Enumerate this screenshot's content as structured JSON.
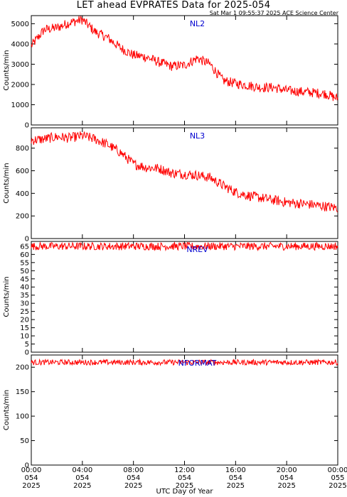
{
  "header": {
    "title": "LET ahead EVPRATES Data for 2025-054",
    "timestamp": "Sat Mar  1 09:55:37 2025 ACE Science Center"
  },
  "colors": {
    "series": "#ff0000",
    "panel_label": "#0000d0",
    "axes": "#000000"
  },
  "chart_data": [
    {
      "type": "line",
      "series": [
        {
          "name": "NL2",
          "x": [
            0,
            1,
            2,
            3,
            4,
            5,
            6,
            7,
            8,
            9,
            10,
            11,
            12,
            13,
            14,
            15,
            16,
            17,
            18,
            19,
            20,
            21,
            22,
            23,
            24
          ],
          "values": [
            3900,
            4700,
            4800,
            5050,
            5200,
            4600,
            4300,
            3800,
            3450,
            3350,
            3100,
            2900,
            2950,
            3300,
            3000,
            2200,
            2050,
            1950,
            1850,
            1850,
            1700,
            1650,
            1600,
            1550,
            1300
          ]
        }
      ],
      "ylabel": "Counts/min",
      "ylim": [
        0,
        5400
      ],
      "yticks": [
        0,
        1000,
        2000,
        3000,
        4000,
        5000
      ]
    },
    {
      "type": "line",
      "series": [
        {
          "name": "NL3",
          "x": [
            0,
            1,
            2,
            3,
            4,
            5,
            6,
            7,
            8,
            9,
            10,
            11,
            12,
            13,
            14,
            15,
            16,
            17,
            18,
            19,
            20,
            21,
            22,
            23,
            24
          ],
          "values": [
            870,
            880,
            900,
            890,
            910,
            880,
            830,
            760,
            660,
            630,
            620,
            580,
            570,
            560,
            540,
            470,
            410,
            380,
            360,
            340,
            320,
            310,
            300,
            285,
            270
          ]
        }
      ],
      "ylabel": "Counts/min",
      "ylim": [
        0,
        980
      ],
      "yticks": [
        0,
        200,
        400,
        600,
        800
      ]
    },
    {
      "type": "line",
      "series": [
        {
          "name": "NREV",
          "x": [
            0,
            24
          ],
          "values": [
            65,
            65
          ]
        }
      ],
      "ylabel": "Counts/min",
      "ylim": [
        0,
        68
      ],
      "yticks": [
        0,
        5,
        10,
        15,
        20,
        25,
        30,
        35,
        40,
        45,
        50,
        55,
        60,
        65
      ]
    },
    {
      "type": "line",
      "series": [
        {
          "name": "NFORMAT",
          "x": [
            0,
            24
          ],
          "values": [
            210,
            210
          ]
        }
      ],
      "ylabel": "Counts/min",
      "ylim": [
        0,
        225
      ],
      "yticks": [
        0,
        50,
        100,
        150,
        200
      ]
    }
  ],
  "x_axis": {
    "label": "UTC Day of Year",
    "range": [
      0,
      24
    ],
    "ticks": [
      {
        "hours": 0,
        "time": "00:00",
        "day": "054",
        "year": "2025"
      },
      {
        "hours": 4,
        "time": "04:00",
        "day": "054",
        "year": "2025"
      },
      {
        "hours": 8,
        "time": "08:00",
        "day": "054",
        "year": "2025"
      },
      {
        "hours": 12,
        "time": "12:00",
        "day": "054",
        "year": "2025"
      },
      {
        "hours": 16,
        "time": "16:00",
        "day": "054",
        "year": "2025"
      },
      {
        "hours": 20,
        "time": "20:00",
        "day": "054",
        "year": "2025"
      },
      {
        "hours": 24,
        "time": "00:00",
        "day": "055",
        "year": "2025"
      }
    ]
  }
}
